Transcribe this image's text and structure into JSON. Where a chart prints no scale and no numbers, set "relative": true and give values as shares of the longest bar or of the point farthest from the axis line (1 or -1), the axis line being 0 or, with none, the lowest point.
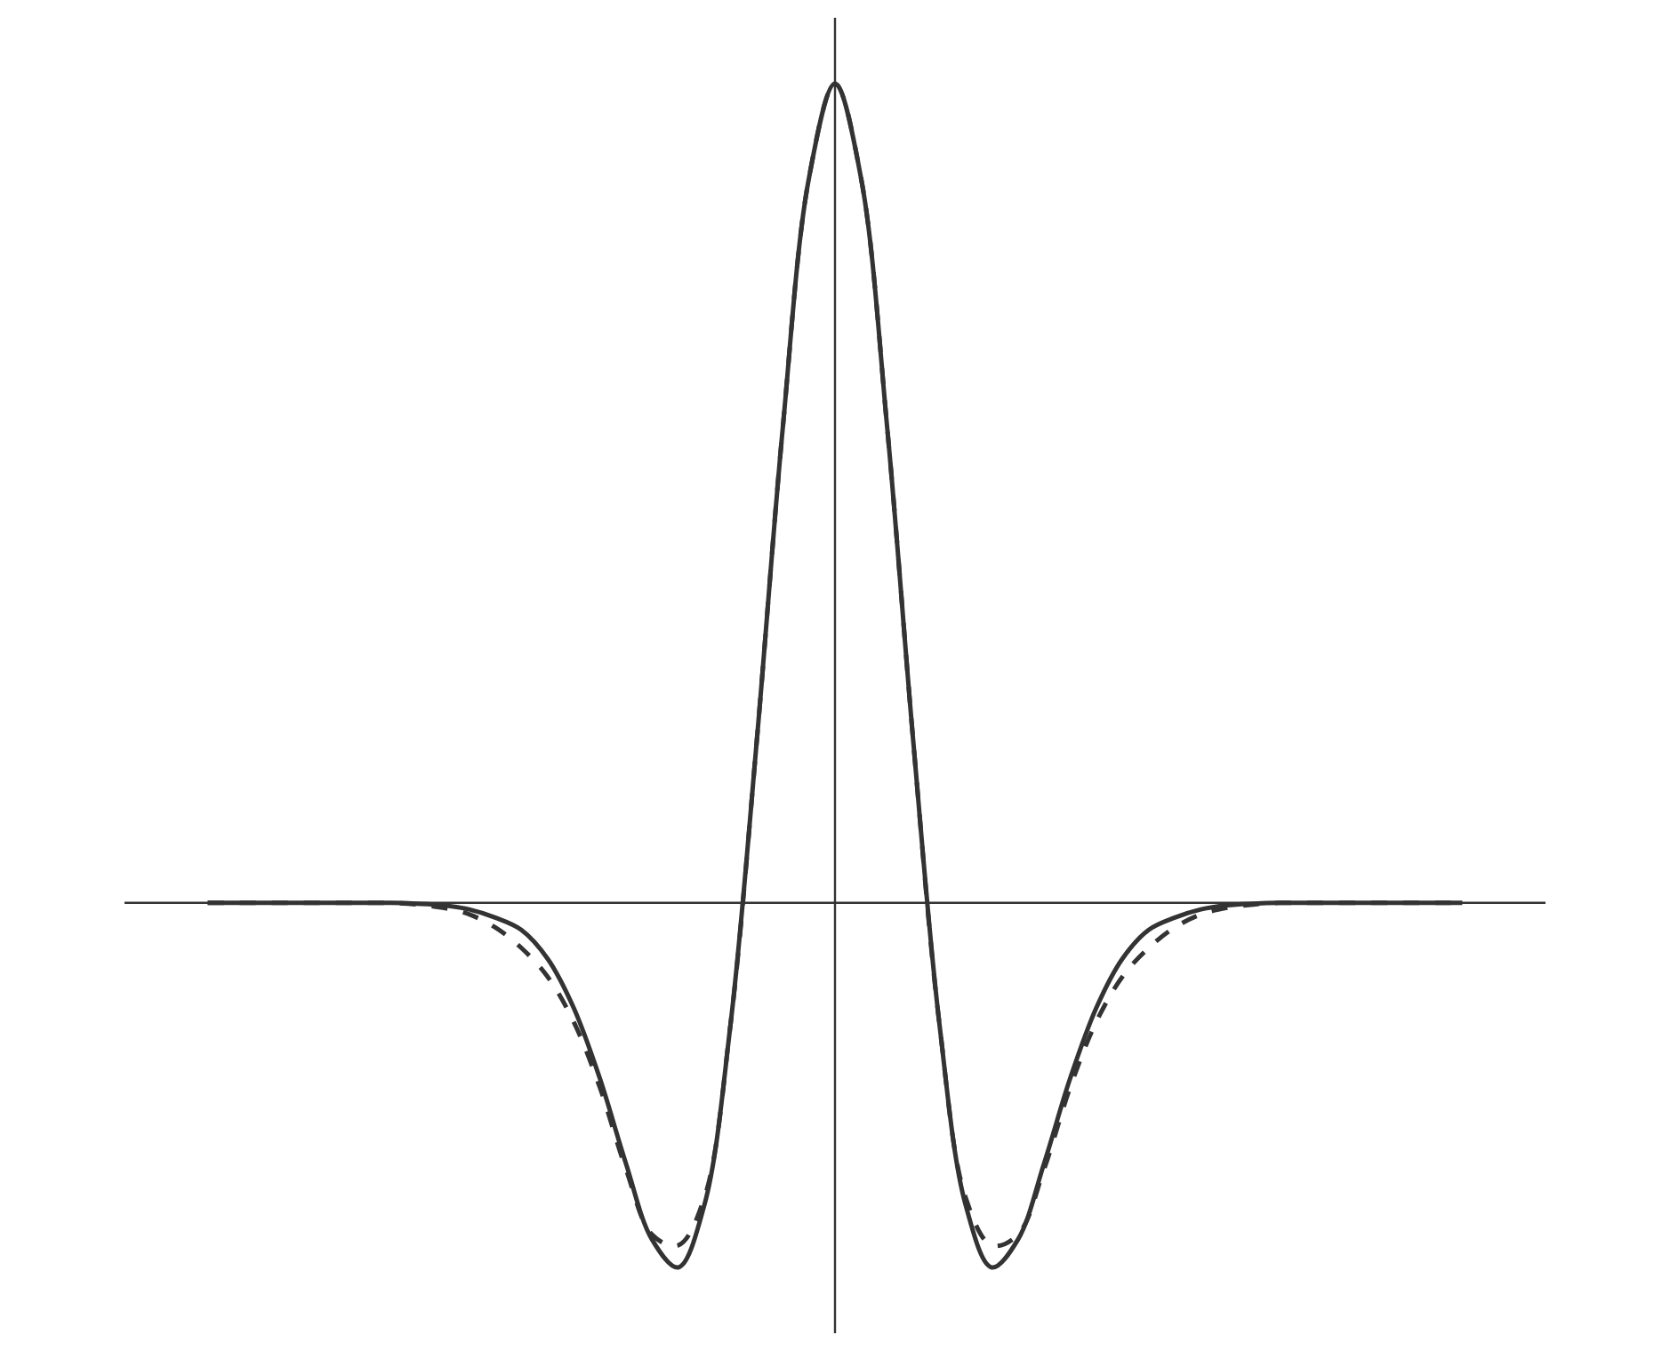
{
  "chart_data": {
    "type": "line",
    "relative": true,
    "marker": "none",
    "categories": [
      null,
      null,
      null,
      null,
      null,
      null,
      null,
      null,
      null,
      null,
      null,
      null,
      null,
      null,
      null,
      null,
      null,
      null,
      null,
      null,
      null,
      null,
      null,
      null,
      null,
      null,
      null,
      null,
      null,
      null,
      null,
      null,
      null,
      null,
      null,
      null,
      null,
      null,
      null,
      null,
      null,
      null,
      null,
      null,
      null,
      null,
      null,
      null,
      null
    ],
    "series": [
      {
        "color": "#333333",
        "line_style": "solid",
        "values": [
          0,
          0,
          0,
          0,
          0,
          0,
          0,
          0,
          -0.001,
          -0.003,
          -0.008,
          -0.018,
          -0.033,
          -0.068,
          -0.128,
          -0.214,
          -0.318,
          -0.411,
          -0.445,
          -0.369,
          -0.149,
          0.195,
          0.579,
          0.884,
          1,
          0.884,
          0.579,
          0.195,
          -0.149,
          -0.369,
          -0.445,
          -0.411,
          -0.318,
          -0.214,
          -0.128,
          -0.068,
          -0.033,
          -0.018,
          -0.008,
          -0.003,
          -0.001,
          0,
          0,
          0,
          0,
          0,
          0,
          0,
          0
        ]
      },
      {
        "color": "#333333",
        "line_style": "dashed",
        "values": [
          0,
          0,
          0,
          0,
          0,
          0,
          0,
          0,
          -0.002,
          -0.006,
          -0.014,
          -0.03,
          -0.055,
          -0.09,
          -0.145,
          -0.225,
          -0.325,
          -0.405,
          -0.418,
          -0.36,
          -0.149,
          0.195,
          0.579,
          0.884,
          1,
          0.884,
          0.579,
          0.195,
          -0.149,
          -0.36,
          -0.418,
          -0.405,
          -0.325,
          -0.225,
          -0.145,
          -0.09,
          -0.055,
          -0.03,
          -0.014,
          -0.006,
          -0.002,
          0,
          0,
          0,
          0,
          0,
          0,
          0,
          0
        ]
      }
    ]
  }
}
